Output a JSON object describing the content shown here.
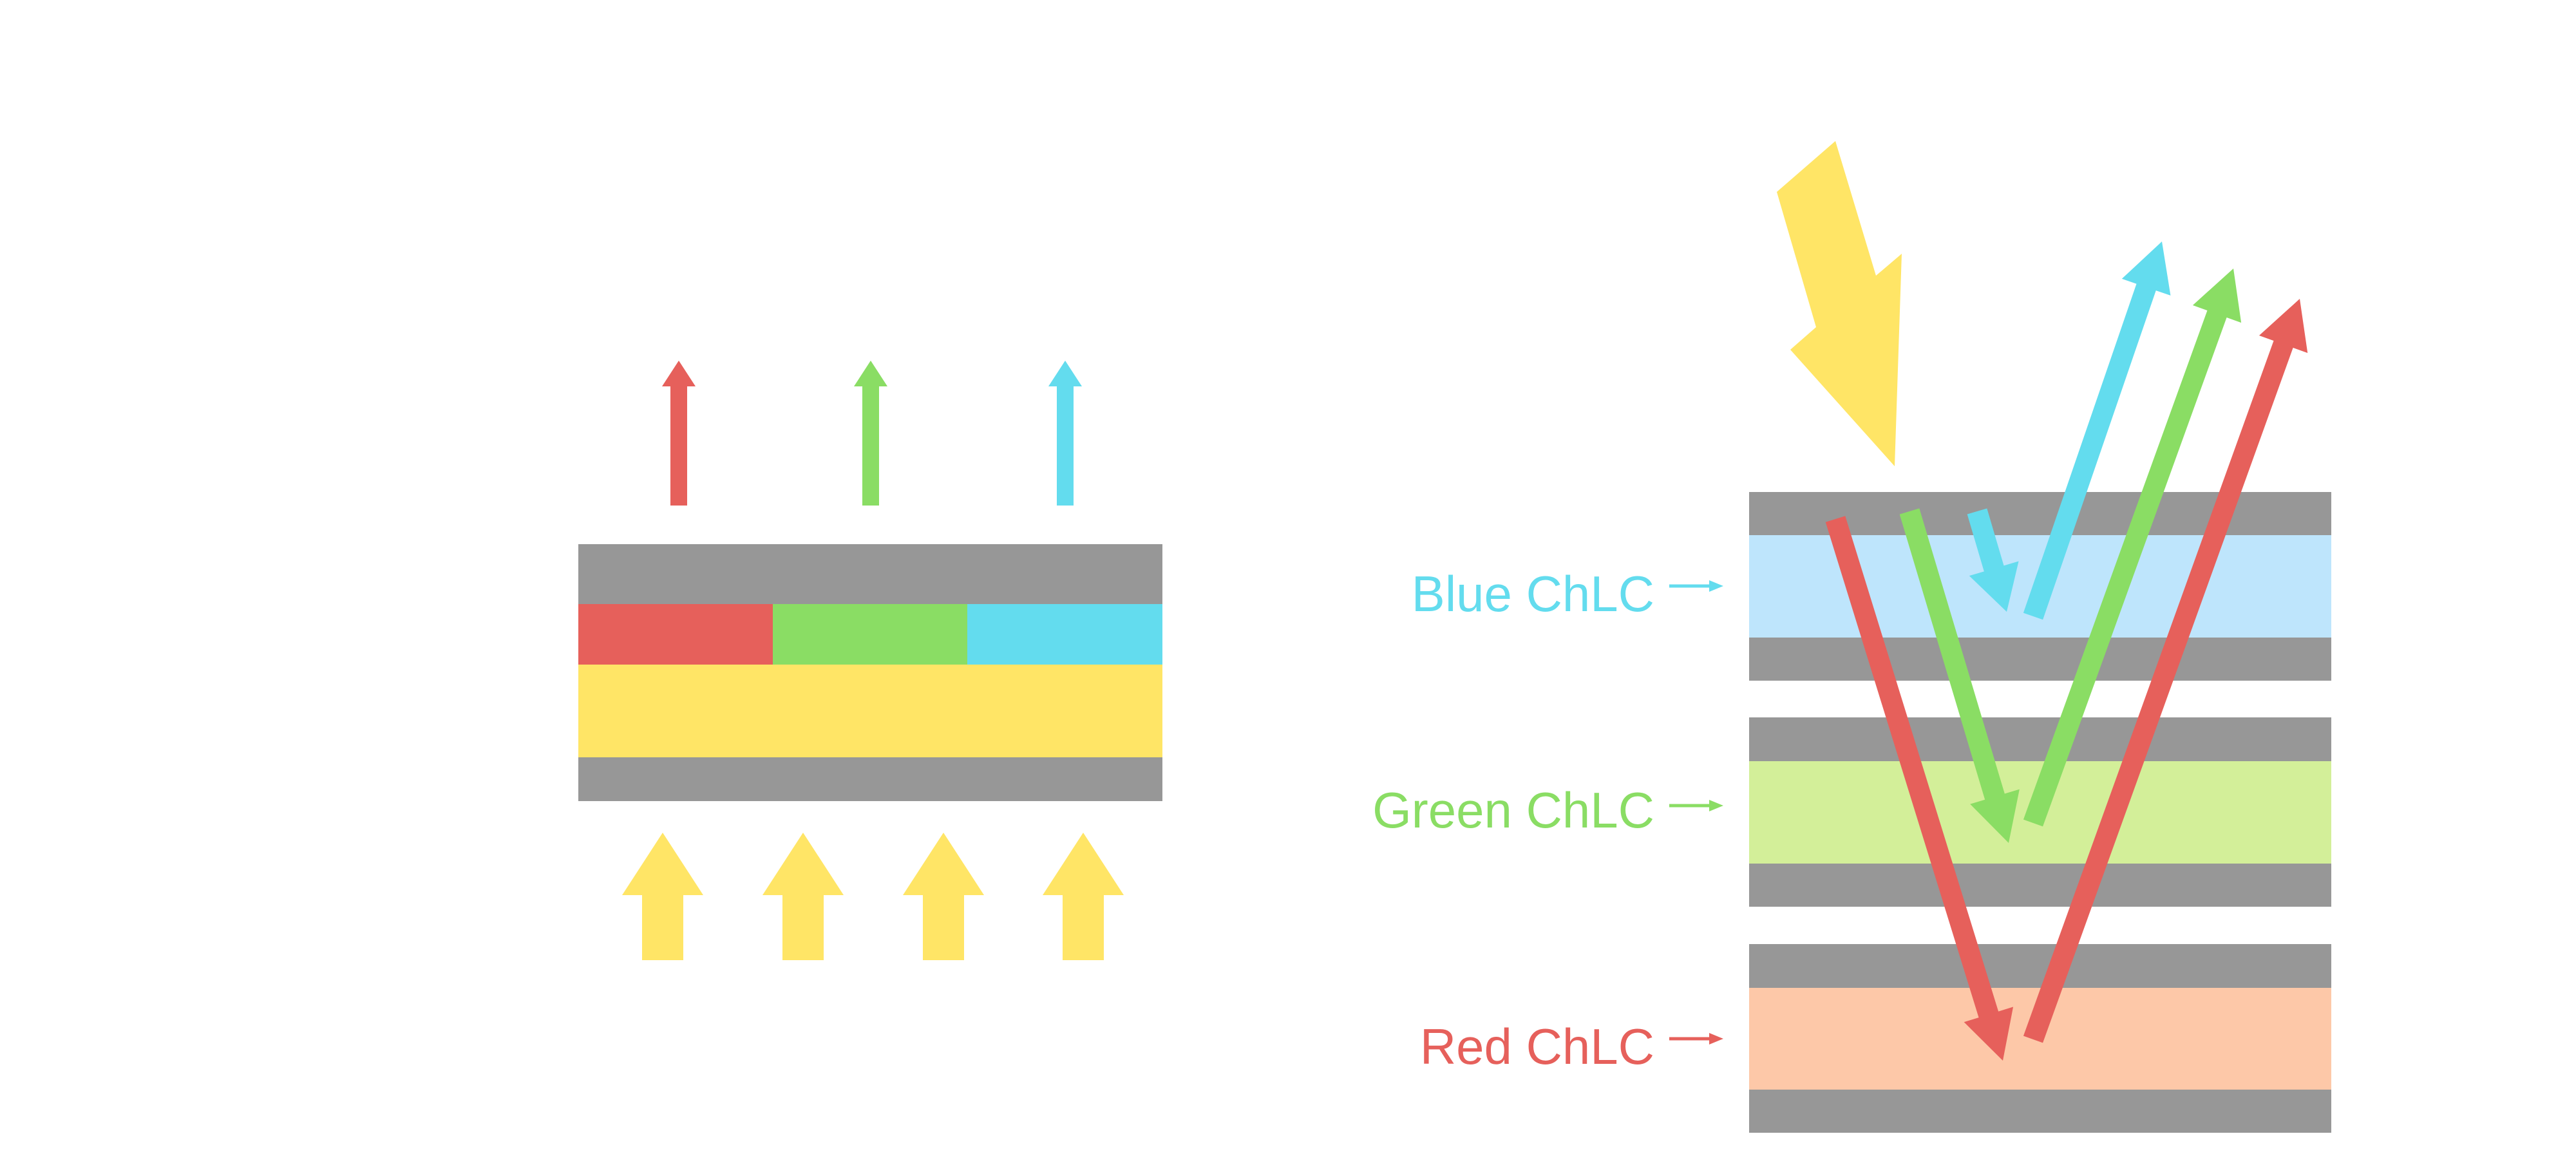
{
  "colors": {
    "red": "#E6605B",
    "green": "#8ADD64",
    "blue": "#63DCEE",
    "yellow": "#FFE566",
    "gray": "#979797",
    "blue_layer": "#BEE5FC",
    "green_layer": "#D3EF99",
    "red_layer": "#FDC8A8"
  },
  "right_diagram": {
    "labels": {
      "blue": "Blue ChLC",
      "green": "Green ChLC",
      "red": "Red ChLC"
    }
  }
}
